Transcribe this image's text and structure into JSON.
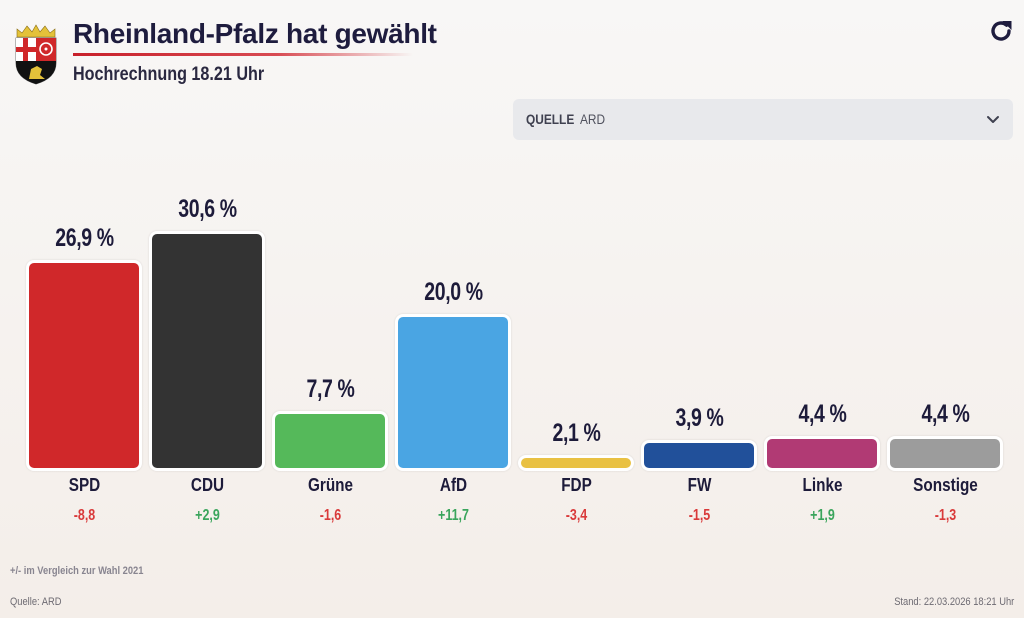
{
  "header": {
    "title": "Rheinland-Pfalz hat gewählt",
    "subtitle": "Hochrechnung 18.21 Uhr",
    "crest_icon": "rheinland-pfalz-coat-of-arms",
    "refresh_icon": "refresh-icon"
  },
  "source_select": {
    "label": "QUELLE",
    "value": "ARD",
    "icon": "chevron-down-icon"
  },
  "footer": {
    "note": "+/- im Vergleich zur Wahl 2021",
    "source": "Quelle: ARD",
    "stand": "Stand: 22.03.2026 18:21 Uhr"
  },
  "colors": {
    "positive": "#3aa55c",
    "negative": "#d93a3a"
  },
  "chart_data": {
    "type": "bar",
    "title": "Rheinland-Pfalz hat gewählt",
    "subtitle": "Hochrechnung 18.21 Uhr",
    "xlabel": "",
    "ylabel": "",
    "ylim": [
      0,
      30.6
    ],
    "grid": false,
    "categories": [
      "SPD",
      "CDU",
      "Grüne",
      "AfD",
      "FDP",
      "FW",
      "Linke",
      "Sonstige"
    ],
    "values": [
      26.9,
      30.6,
      7.7,
      20.0,
      2.1,
      3.9,
      4.4,
      4.4
    ],
    "value_labels": [
      "26,9 %",
      "30,6 %",
      "7,7 %",
      "20,0 %",
      "2,1 %",
      "3,9 %",
      "4,4 %",
      "4,4 %"
    ],
    "changes": [
      -8.8,
      2.9,
      -1.6,
      11.7,
      -3.4,
      -1.5,
      1.9,
      -1.3
    ],
    "change_labels": [
      "-8,8",
      "+2,9",
      "-1,6",
      "+11,7",
      "-3,4",
      "-1,5",
      "+1,9",
      "-1,3"
    ],
    "bar_colors": [
      "#d0282a",
      "#333333",
      "#55b95a",
      "#4aa5e3",
      "#e9c143",
      "#21509a",
      "#b13a74",
      "#9c9c9c"
    ],
    "change_note": "+/- im Vergleich zur Wahl 2021"
  }
}
